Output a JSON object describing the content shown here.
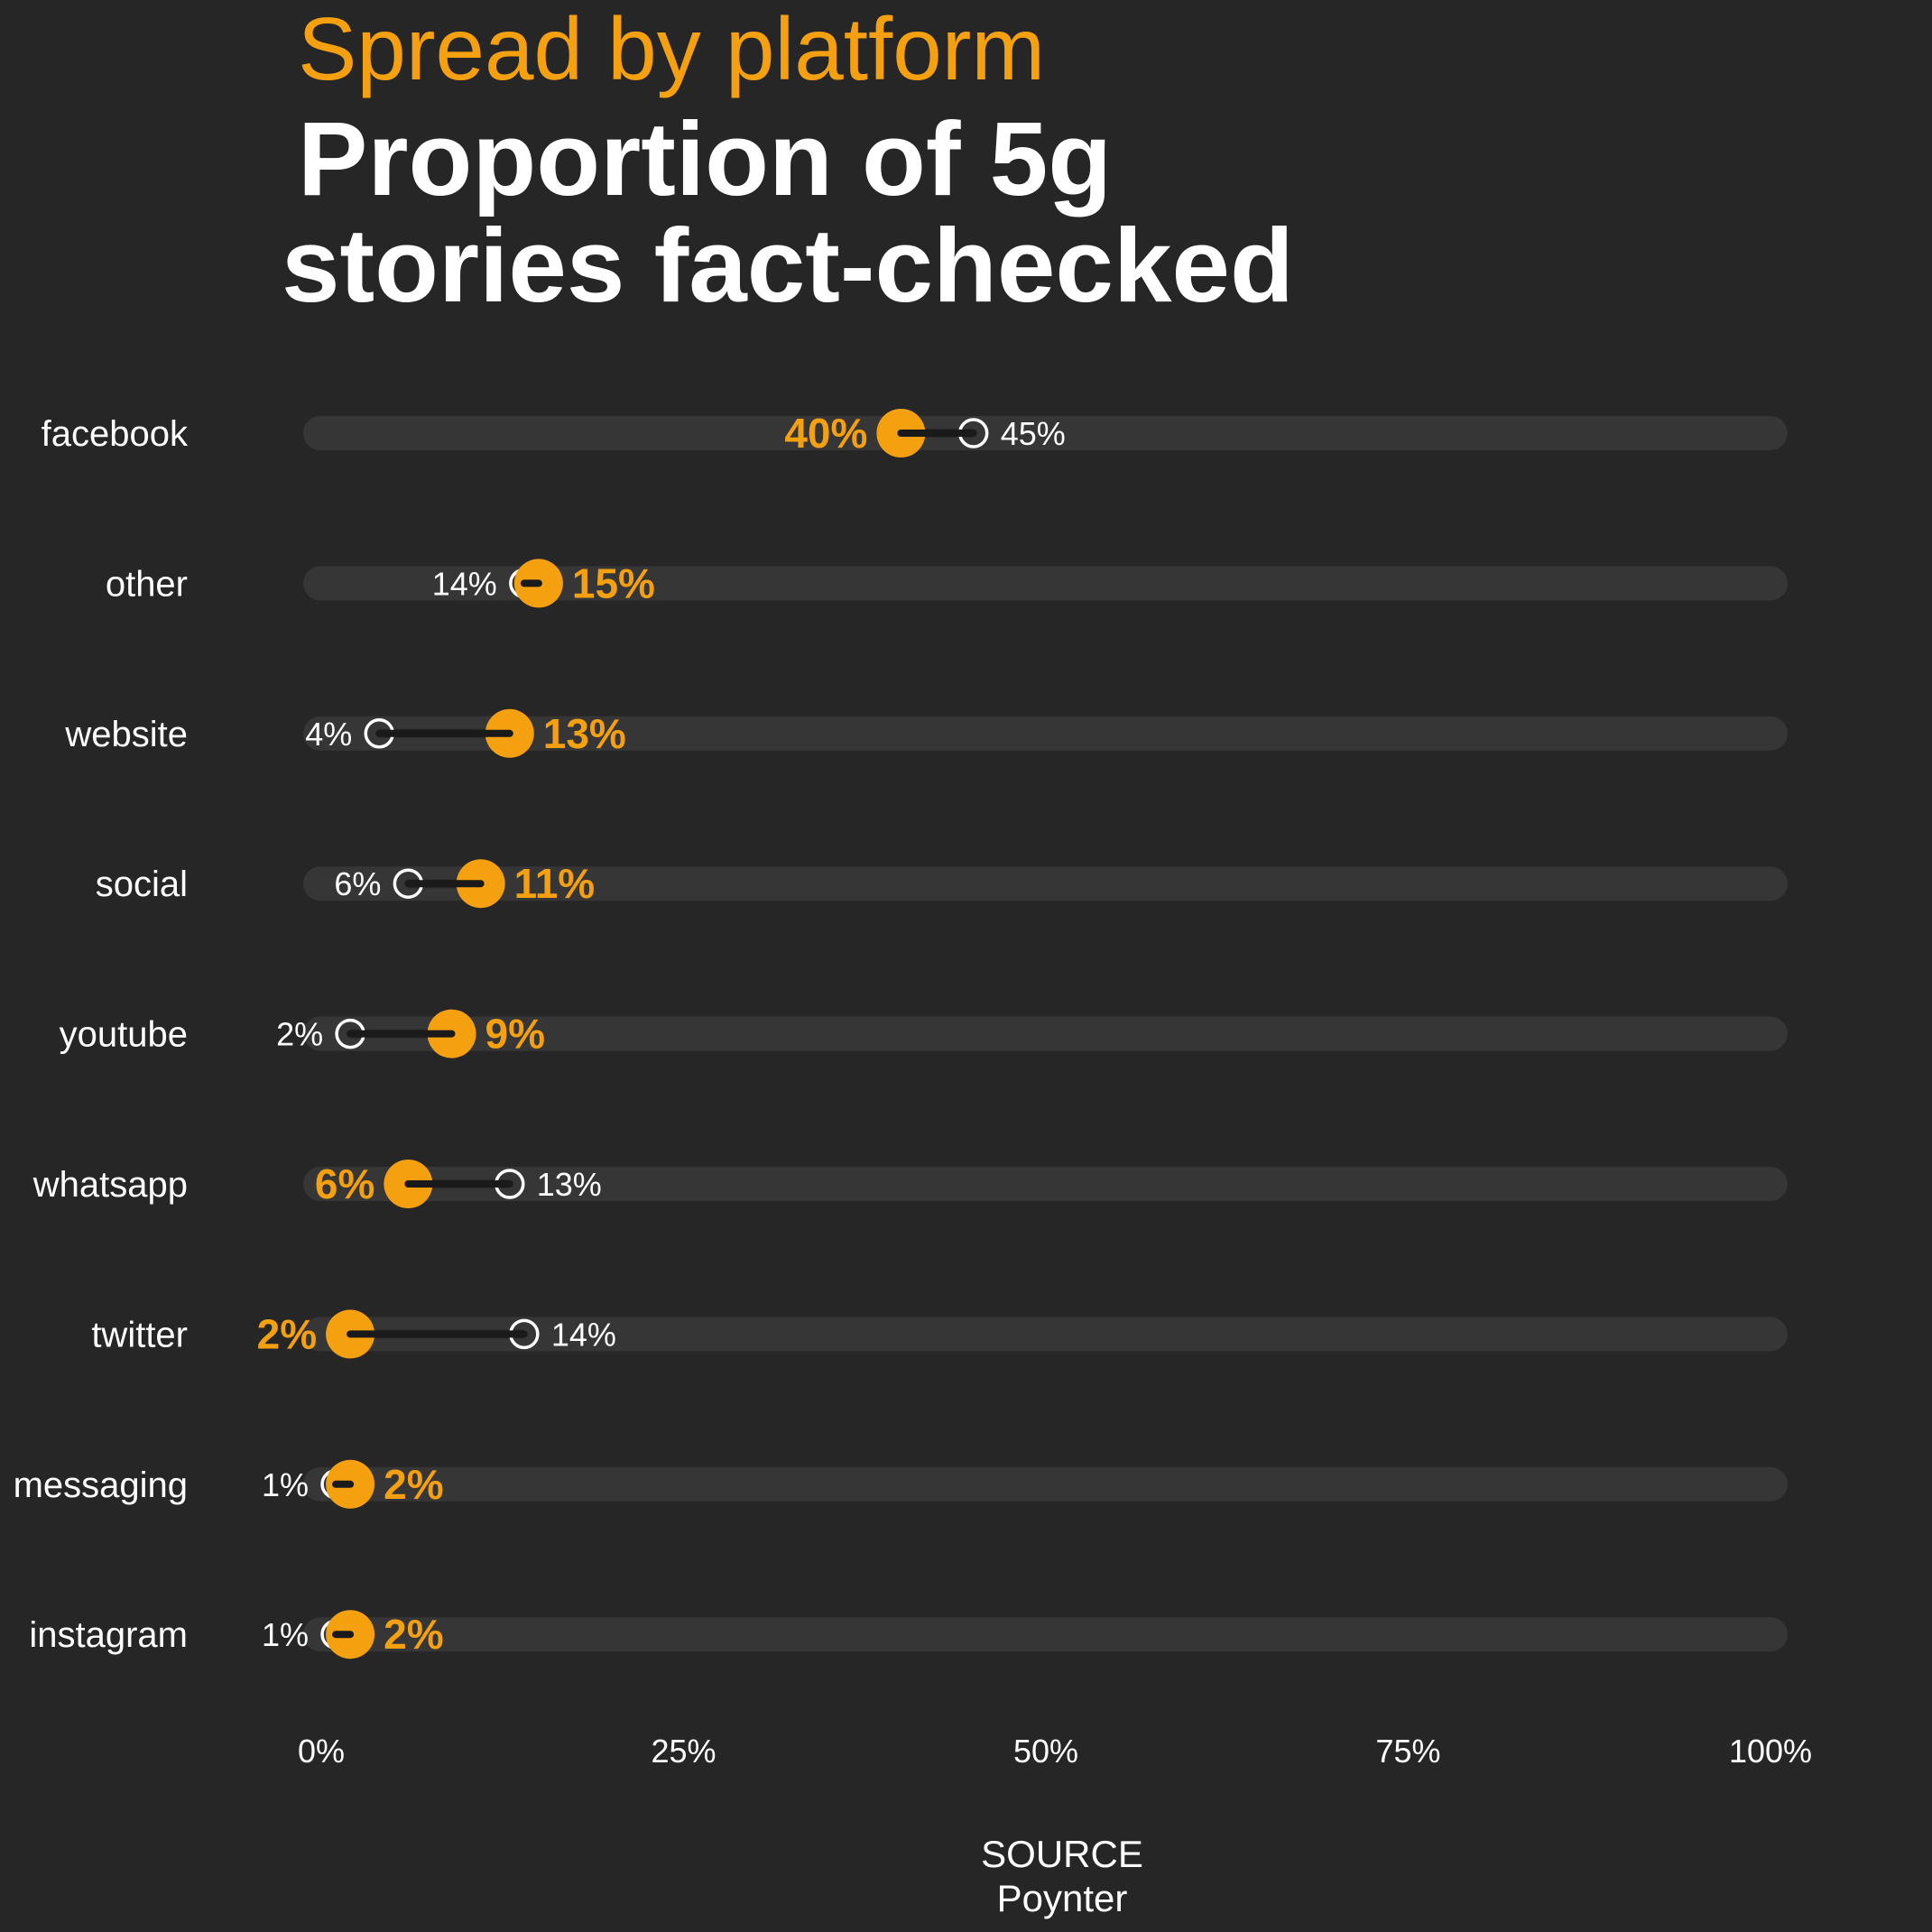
{
  "chart_data": {
    "type": "dumbbell",
    "kicker": "Spread by platform",
    "title_lines": [
      "Proportion of 5g",
      "stories fact-checked"
    ],
    "x_ticks": [
      {
        "value": 0,
        "label": "0%"
      },
      {
        "value": 25,
        "label": "25%"
      },
      {
        "value": 50,
        "label": "50%"
      },
      {
        "value": 75,
        "label": "75%"
      },
      {
        "value": 100,
        "label": "100%"
      }
    ],
    "xlim": [
      0,
      100
    ],
    "categories": [
      "facebook",
      "other",
      "website",
      "social",
      "youtube",
      "whatsapp",
      "twitter",
      "messaging",
      "instagram"
    ],
    "series": [
      {
        "values": [
          40,
          15,
          13,
          11,
          9,
          6,
          2,
          2,
          2
        ],
        "labels": [
          "40%",
          "15%",
          "13%",
          "11%",
          "9%",
          "6%",
          "2%",
          "2%",
          "2%"
        ],
        "color": "#f5a00f",
        "marker": "filled"
      },
      {
        "values": [
          45,
          14,
          4,
          6,
          2,
          13,
          14,
          1,
          1
        ],
        "labels": [
          "45%",
          "14%",
          "4%",
          "6%",
          "2%",
          "13%",
          "14%",
          "1%",
          "1%"
        ],
        "color": "#ffffff",
        "marker": "hollow"
      }
    ],
    "source_label": "SOURCE",
    "source_name": "Poynter"
  }
}
